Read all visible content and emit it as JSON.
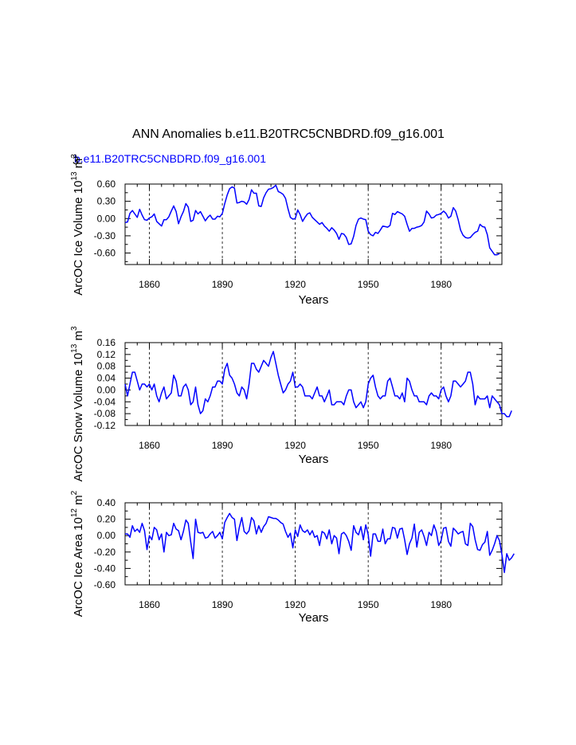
{
  "figure": {
    "title": "ANN Anomalies b.e11.B20TRC5CNBDRD.f09_g16.001",
    "legend_label": "b.e11.B20TRC5CNBDRD.f09_g16.001",
    "legend_marker": "3",
    "series_color": "#0000ff"
  },
  "chart_data": [
    {
      "type": "line",
      "ylabel": "ArcOC Ice Volume 10^13 m^3",
      "ylabel_parts": {
        "prefix": "ArcOC Ice Volume 10",
        "exp1": "13",
        "mid": " m",
        "exp2": "3"
      },
      "xlabel": "Years",
      "xlim": [
        1850,
        2005
      ],
      "ylim": [
        -0.8,
        0.6
      ],
      "yticks": [
        -0.6,
        -0.3,
        0.0,
        0.3,
        0.6
      ],
      "ytick_labels": [
        "-0.60",
        "-0.30",
        "0.00",
        "0.30",
        "0.60"
      ],
      "xticks": [
        1860,
        1890,
        1920,
        1950,
        1980
      ],
      "xtick_labels": [
        "1860",
        "1890",
        "1920",
        "1950",
        "1980"
      ],
      "grid_x": [
        1860,
        1890,
        1920,
        1950,
        1980
      ],
      "series": [
        {
          "name": "b.e11.B20TRC5CNBDRD.f09_g16.001",
          "x_start": 1850,
          "values": [
            -0.07,
            -0.06,
            0.09,
            0.14,
            0.08,
            0.02,
            0.16,
            0.06,
            -0.02,
            -0.03,
            0.01,
            0.03,
            0.08,
            -0.05,
            -0.09,
            -0.13,
            -0.02,
            -0.02,
            0.03,
            0.13,
            0.22,
            0.12,
            -0.09,
            0.03,
            0.12,
            0.26,
            0.2,
            -0.05,
            -0.03,
            0.14,
            0.08,
            0.12,
            0.04,
            -0.04,
            0.02,
            0.06,
            -0.01,
            -0.01,
            0.04,
            0.03,
            0.09,
            0.26,
            0.41,
            0.52,
            0.55,
            0.53,
            0.27,
            0.28,
            0.3,
            0.29,
            0.25,
            0.33,
            0.5,
            0.44,
            0.44,
            0.22,
            0.21,
            0.36,
            0.45,
            0.51,
            0.52,
            0.54,
            0.58,
            0.47,
            0.45,
            0.42,
            0.35,
            0.17,
            0.02,
            -0.01,
            0.0,
            0.15,
            0.07,
            -0.05,
            0.02,
            0.08,
            0.1,
            0.02,
            -0.02,
            -0.06,
            -0.1,
            -0.07,
            -0.13,
            -0.17,
            -0.22,
            -0.16,
            -0.2,
            -0.26,
            -0.36,
            -0.26,
            -0.27,
            -0.33,
            -0.45,
            -0.44,
            -0.31,
            -0.12,
            -0.01,
            0.01,
            -0.01,
            -0.02,
            -0.22,
            -0.28,
            -0.3,
            -0.24,
            -0.26,
            -0.2,
            -0.13,
            -0.14,
            -0.15,
            -0.12,
            0.09,
            0.07,
            0.12,
            0.1,
            0.08,
            0.04,
            -0.1,
            -0.22,
            -0.17,
            -0.17,
            -0.15,
            -0.14,
            -0.12,
            -0.06,
            0.13,
            0.08,
            0.01,
            0.02,
            0.06,
            0.07,
            0.09,
            0.13,
            0.09,
            0.01,
            0.04,
            0.19,
            0.13,
            -0.02,
            -0.2,
            -0.29,
            -0.33,
            -0.34,
            -0.33,
            -0.28,
            -0.24,
            -0.22,
            -0.1,
            -0.14,
            -0.15,
            -0.28,
            -0.51,
            -0.57,
            -0.63,
            -0.63,
            -0.61
          ]
        }
      ]
    },
    {
      "type": "line",
      "ylabel": "ArcOC Snow Volume 10^13 m^3",
      "ylabel_parts": {
        "prefix": "ArcOC Snow Volume 10",
        "exp1": "13",
        "mid": " m",
        "exp2": "3"
      },
      "xlabel": "Years",
      "xlim": [
        1850,
        2005
      ],
      "ylim": [
        -0.12,
        0.16
      ],
      "yticks": [
        -0.12,
        -0.08,
        -0.04,
        0.0,
        0.04,
        0.08,
        0.12,
        0.16
      ],
      "ytick_labels": [
        "-0.12",
        "-0.08",
        "-0.04",
        "0.00",
        "0.04",
        "0.08",
        "0.12",
        "0.16"
      ],
      "xticks": [
        1860,
        1890,
        1920,
        1950,
        1980
      ],
      "xtick_labels": [
        "1860",
        "1890",
        "1920",
        "1950",
        "1980"
      ],
      "grid_x": [
        1860,
        1890,
        1920,
        1950,
        1980
      ],
      "series": [
        {
          "name": "b.e11.B20TRC5CNBDRD.f09_g16.001",
          "x_start": 1850,
          "values": [
            0.02,
            -0.02,
            0.02,
            0.06,
            0.06,
            0.03,
            0.0,
            0.02,
            0.02,
            0.01,
            0.02,
            0.0,
            0.02,
            -0.02,
            -0.04,
            -0.01,
            0.01,
            -0.03,
            -0.02,
            -0.01,
            0.05,
            0.03,
            -0.02,
            -0.02,
            0.01,
            0.02,
            0.0,
            -0.05,
            -0.04,
            0.01,
            -0.05,
            -0.08,
            -0.07,
            -0.03,
            -0.04,
            -0.02,
            0.01,
            0.01,
            0.03,
            0.03,
            0.02,
            0.07,
            0.09,
            0.05,
            0.04,
            0.02,
            -0.01,
            -0.02,
            0.01,
            0.0,
            -0.03,
            0.02,
            0.09,
            0.09,
            0.07,
            0.06,
            0.08,
            0.1,
            0.09,
            0.08,
            0.11,
            0.13,
            0.09,
            0.05,
            0.02,
            -0.01,
            0.0,
            0.02,
            0.03,
            0.06,
            0.01,
            0.01,
            0.02,
            0.01,
            -0.02,
            -0.02,
            -0.02,
            -0.03,
            -0.01,
            0.01,
            -0.02,
            -0.02,
            -0.04,
            -0.02,
            0.0,
            -0.05,
            -0.05,
            -0.04,
            -0.04,
            -0.04,
            -0.05,
            -0.02,
            0.0,
            0.0,
            -0.04,
            -0.06,
            -0.05,
            -0.04,
            -0.06,
            -0.04,
            0.02,
            0.04,
            0.05,
            0.01,
            -0.02,
            -0.03,
            -0.02,
            -0.02,
            0.03,
            0.04,
            0.01,
            -0.02,
            -0.02,
            -0.03,
            -0.01,
            -0.04,
            0.04,
            0.03,
            0.0,
            -0.02,
            -0.02,
            -0.04,
            -0.04,
            -0.04,
            -0.05,
            -0.02,
            -0.01,
            -0.02,
            -0.02,
            -0.03,
            0.0,
            0.01,
            -0.02,
            -0.04,
            -0.02,
            0.03,
            0.03,
            0.02,
            0.01,
            0.02,
            0.03,
            0.06,
            0.06,
            0.02,
            -0.05,
            -0.02,
            -0.03,
            -0.03,
            -0.03,
            -0.02,
            -0.06,
            -0.02,
            -0.03,
            -0.04,
            -0.05,
            -0.08,
            -0.08,
            -0.09,
            -0.09,
            -0.07
          ]
        }
      ]
    },
    {
      "type": "line",
      "ylabel": "ArcOC Ice Area 10^12 m^2",
      "ylabel_parts": {
        "prefix": "ArcOC Ice Area 10",
        "exp1": "12",
        "mid": " m",
        "exp2": "2"
      },
      "xlabel": "Years",
      "xlim": [
        1850,
        2005
      ],
      "ylim": [
        -0.6,
        0.4
      ],
      "yticks": [
        -0.6,
        -0.4,
        -0.2,
        0.0,
        0.2,
        0.4
      ],
      "ytick_labels": [
        "-0.60",
        "-0.40",
        "-0.20",
        "0.00",
        "0.20",
        "0.40"
      ],
      "xticks": [
        1860,
        1890,
        1920,
        1950,
        1980
      ],
      "xtick_labels": [
        "1860",
        "1890",
        "1920",
        "1950",
        "1980"
      ],
      "grid_x": [
        1860,
        1890,
        1920,
        1950,
        1980
      ],
      "series": [
        {
          "name": "b.e11.B20TRC5CNBDRD.f09_g16.001",
          "x_start": 1850,
          "values": [
            0.02,
            0.02,
            -0.02,
            0.12,
            0.05,
            0.08,
            0.04,
            0.15,
            0.06,
            -0.17,
            0.0,
            -0.05,
            0.1,
            0.07,
            -0.05,
            0.02,
            -0.2,
            0.04,
            0.0,
            0.01,
            0.15,
            0.08,
            0.06,
            -0.05,
            0.05,
            0.19,
            0.15,
            -0.08,
            -0.28,
            0.2,
            0.04,
            0.03,
            0.04,
            -0.03,
            -0.02,
            0.02,
            0.05,
            -0.03,
            0.0,
            0.04,
            -0.04,
            0.16,
            0.22,
            0.27,
            0.22,
            0.2,
            -0.06,
            0.1,
            0.22,
            0.05,
            0.02,
            0.06,
            0.22,
            0.18,
            0.02,
            0.12,
            0.04,
            0.11,
            0.15,
            0.23,
            0.22,
            0.21,
            0.21,
            0.19,
            0.16,
            0.14,
            0.05,
            -0.02,
            0.03,
            -0.15,
            0.07,
            -0.01,
            0.13,
            0.06,
            0.04,
            0.07,
            0.01,
            0.06,
            -0.02,
            0.0,
            -0.12,
            0.05,
            0.03,
            -0.04,
            0.07,
            -0.1,
            0.0,
            -0.03,
            -0.22,
            0.02,
            0.04,
            0.0,
            -0.07,
            -0.18,
            0.12,
            0.04,
            0.01,
            0.11,
            -0.05,
            0.13,
            0.01,
            -0.25,
            0.02,
            0.02,
            -0.07,
            -0.07,
            0.08,
            -0.1,
            -0.04,
            -0.04,
            0.1,
            0.09,
            -0.03,
            0.08,
            0.09,
            -0.05,
            -0.23,
            -0.1,
            -0.03,
            0.14,
            -0.14,
            0.04,
            0.07,
            -0.01,
            -0.12,
            0.04,
            0.0,
            0.13,
            0.05,
            -0.12,
            -0.06,
            0.09,
            0.1,
            -0.07,
            -0.13,
            0.09,
            0.06,
            0.02,
            0.04,
            0.05,
            -0.1,
            -0.12,
            0.15,
            0.11,
            -0.05,
            -0.17,
            -0.18,
            -0.11,
            -0.08,
            0.05,
            -0.24,
            -0.18,
            -0.1,
            0.0,
            -0.06,
            -0.23,
            -0.45,
            -0.22,
            -0.3,
            -0.27,
            -0.22
          ]
        }
      ]
    }
  ]
}
